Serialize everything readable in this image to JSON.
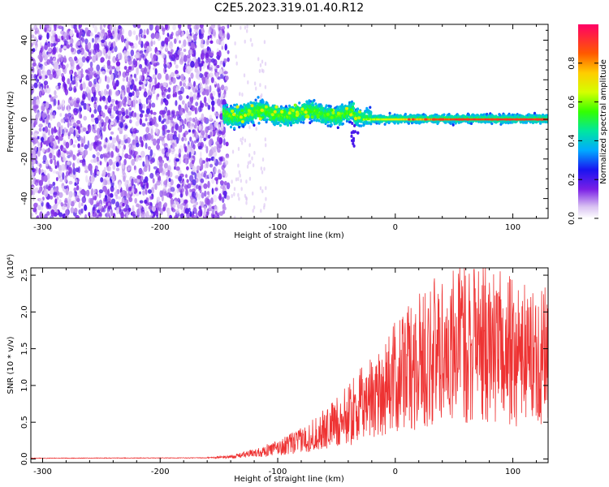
{
  "title": "C2E5.2023.319.01.40.R12",
  "chart_data": [
    {
      "type": "heatmap",
      "xlabel": "Height of straight line (km)",
      "ylabel": "Frequency (Hz)",
      "xlim": [
        -310,
        130
      ],
      "ylim": [
        -50,
        48
      ],
      "xticks": [
        -300,
        -200,
        -100,
        0,
        100
      ],
      "yticks": [
        40,
        20,
        0,
        -20,
        -40
      ],
      "colorbar": {
        "label": "Normalized spectral amplitude",
        "range": [
          0,
          1
        ],
        "ticks": [
          0.0,
          0.2,
          0.4,
          0.6,
          0.8
        ]
      }
    },
    {
      "type": "line",
      "xlabel": "Height of straight line (km)",
      "ylabel": "SNR (10 * v/v)",
      "yscale_label": "(x10⁴)",
      "xlim": [
        -310,
        130
      ],
      "ylim": [
        -0.05,
        2.6
      ],
      "xticks": [
        -300,
        -200,
        -100,
        0,
        100
      ],
      "yticks": [
        0.0,
        0.5,
        1.0,
        1.5,
        2.0,
        2.5
      ],
      "color": "#ee3333",
      "envelope": {
        "x": [
          -310,
          -160,
          -140,
          -120,
          -100,
          -80,
          -60,
          -40,
          -20,
          0,
          20,
          40,
          60,
          80,
          100,
          120,
          130
        ],
        "y": [
          0.01,
          0.015,
          0.03,
          0.08,
          0.15,
          0.25,
          0.4,
          0.6,
          0.85,
          1.1,
          1.35,
          1.5,
          1.6,
          1.55,
          1.45,
          1.4,
          1.45
        ]
      },
      "peak": {
        "x": 67,
        "y": 2.58
      }
    }
  ]
}
